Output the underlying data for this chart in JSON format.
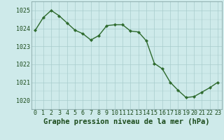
{
  "x": [
    0,
    1,
    2,
    3,
    4,
    5,
    6,
    7,
    8,
    9,
    10,
    11,
    12,
    13,
    14,
    15,
    16,
    17,
    18,
    19,
    20,
    21,
    22,
    23
  ],
  "y": [
    1023.9,
    1024.6,
    1025.0,
    1024.7,
    1024.3,
    1023.9,
    1023.7,
    1023.35,
    1023.6,
    1024.15,
    1024.2,
    1024.2,
    1023.85,
    1023.8,
    1023.3,
    1022.05,
    1021.75,
    1021.0,
    1020.55,
    1020.15,
    1020.2,
    1020.45,
    1020.7,
    1021.0
  ],
  "line_color": "#2d6a2d",
  "marker_color": "#2d6a2d",
  "bg_color": "#ceeaea",
  "grid_color": "#a8cccc",
  "title": "Graphe pression niveau de la mer (hPa)",
  "ylim": [
    1019.5,
    1025.5
  ],
  "yticks": [
    1020,
    1021,
    1022,
    1023,
    1024,
    1025
  ],
  "xlim": [
    -0.5,
    23.5
  ],
  "xticks": [
    0,
    1,
    2,
    3,
    4,
    5,
    6,
    7,
    8,
    9,
    10,
    11,
    12,
    13,
    14,
    15,
    16,
    17,
    18,
    19,
    20,
    21,
    22,
    23
  ],
  "title_fontsize": 7.5,
  "tick_fontsize": 6.0,
  "title_color": "#1a4a1a",
  "tick_color": "#1a4a1a",
  "line_width": 1.0,
  "marker_size": 2.2,
  "spine_color": "#7a9a9a"
}
